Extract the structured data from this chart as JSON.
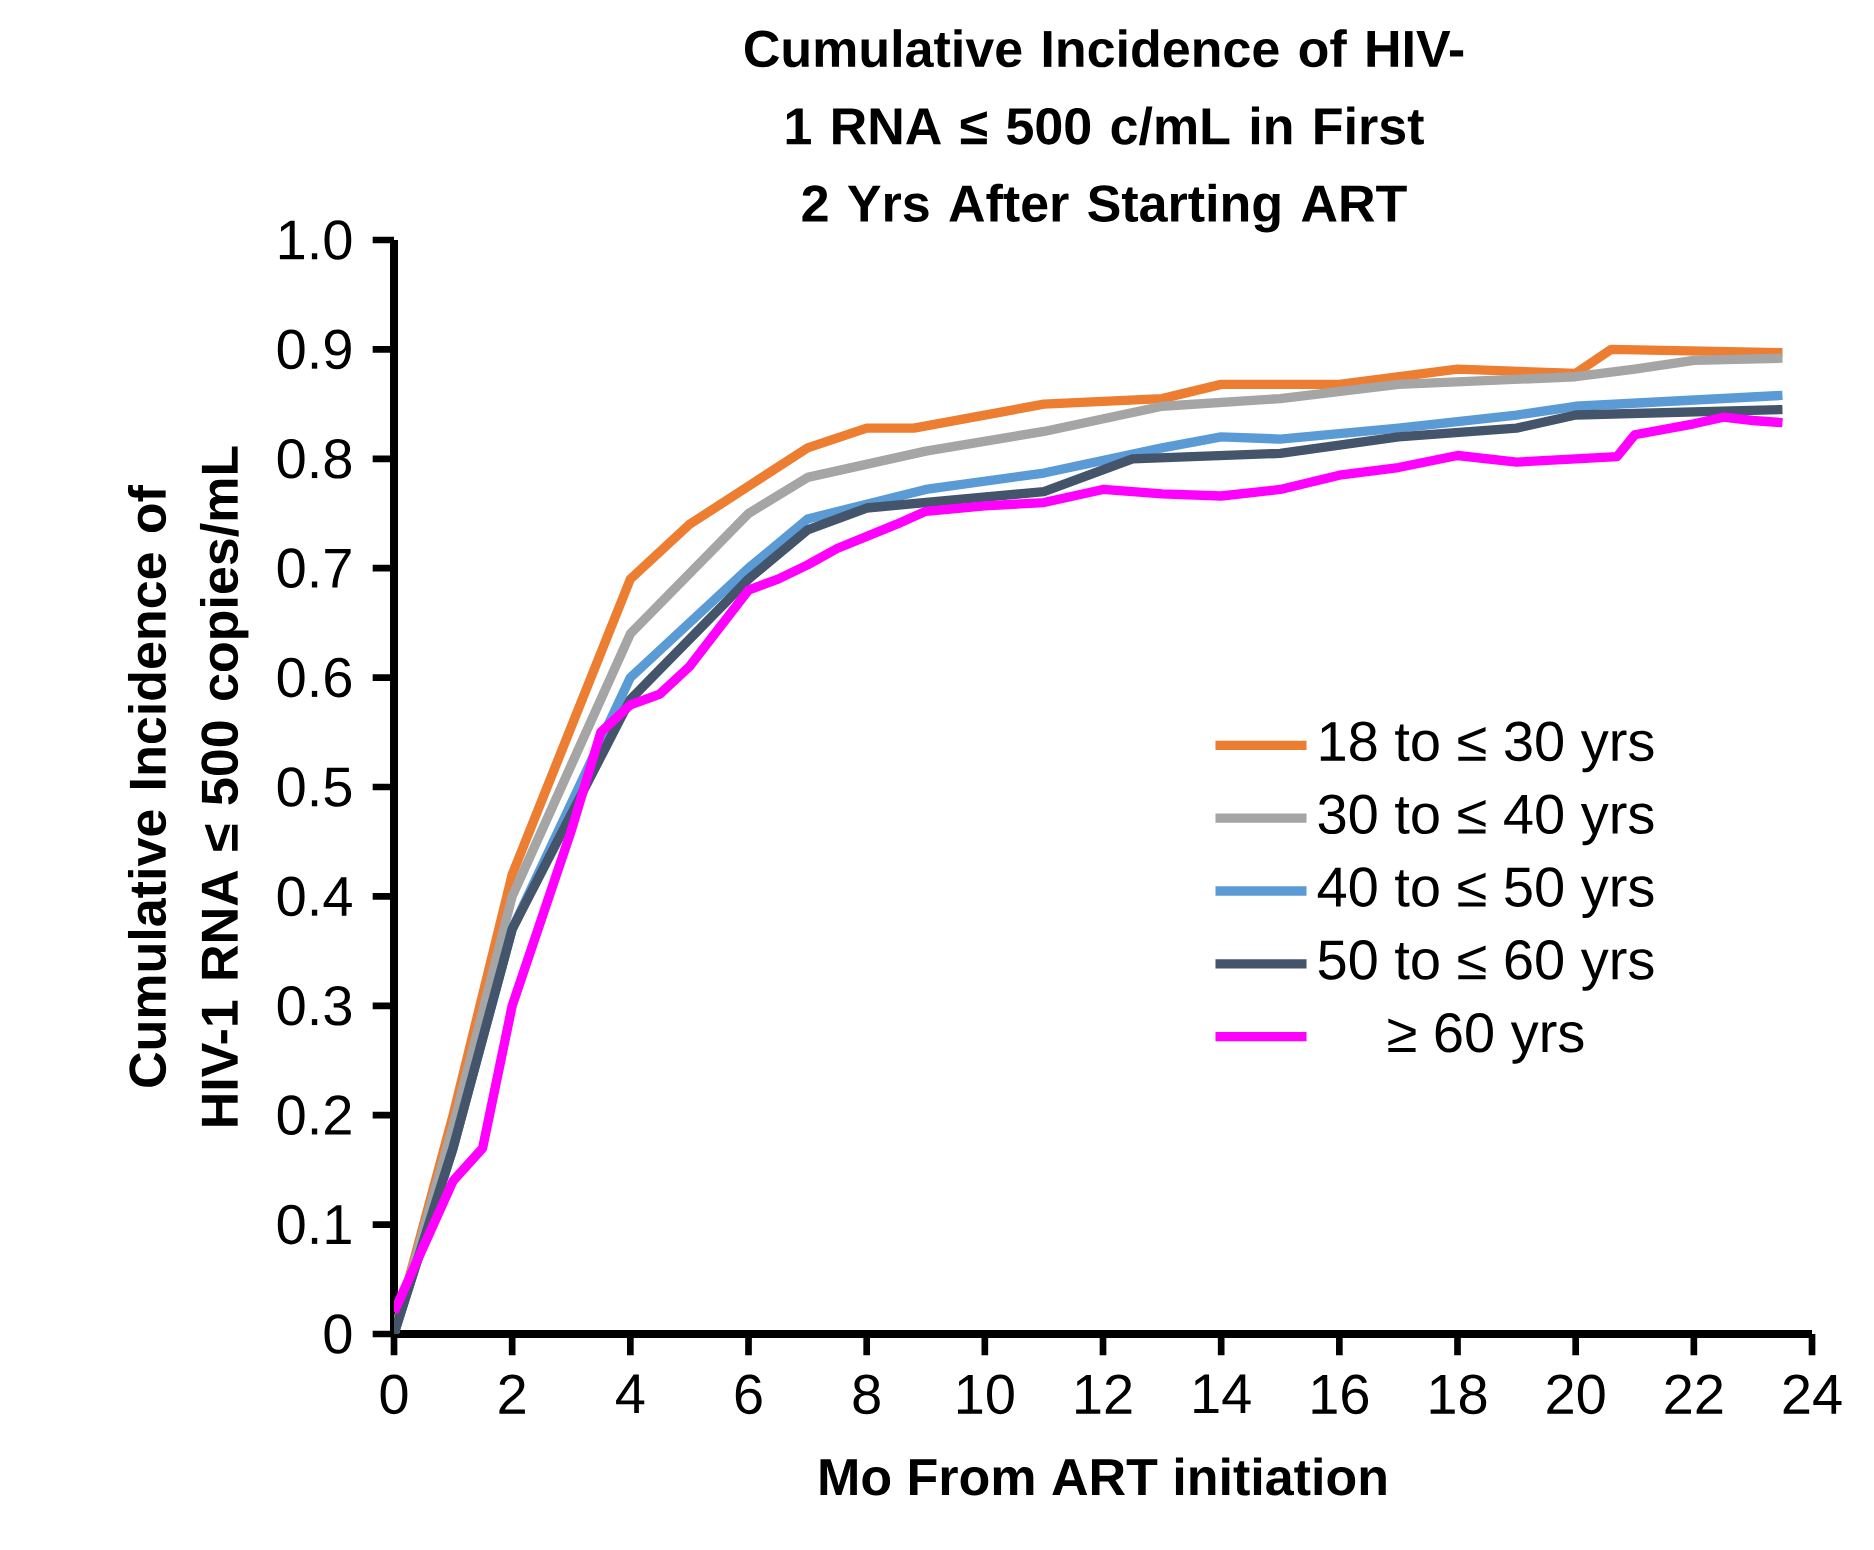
{
  "chart_data": {
    "type": "line",
    "title": "Cumulative Incidence of HIV-1 RNA ≤ 500 c/mL in First 2 Yrs After Starting ART",
    "xlabel": "Mo From ART initiation",
    "ylabel": "Cumulative Incidence of HIV-1 RNA ≤ 500 copies/mL",
    "xlim": [
      0,
      24
    ],
    "ylim": [
      0,
      1
    ],
    "xticks": [
      0,
      2,
      4,
      6,
      8,
      10,
      12,
      14,
      16,
      18,
      20,
      22,
      24
    ],
    "yticks": [
      0,
      0.1,
      0.2,
      0.3,
      0.4,
      0.5,
      0.6,
      0.7,
      0.8,
      0.9,
      {
        "value": 1,
        "label": "1.0"
      }
    ],
    "grid": false,
    "legend": "right",
    "marker": "none",
    "line_style": "solid",
    "series": [
      {
        "name": "18 to ≤ 30 yrs",
        "color": "#ed7d31",
        "x": [
          0,
          1,
          2,
          4,
          5,
          6,
          7,
          8,
          8.8,
          11,
          13,
          14,
          16,
          18,
          20,
          20.6,
          23.5
        ],
        "values": [
          0,
          0.2,
          0.42,
          0.69,
          0.74,
          0.775,
          0.81,
          0.828,
          0.828,
          0.85,
          0.855,
          0.868,
          0.868,
          0.882,
          0.878,
          0.9,
          0.897
        ]
      },
      {
        "name": "30 to ≤ 40 yrs",
        "color": "#a5a5a5",
        "x": [
          0,
          1,
          2,
          4,
          6,
          7,
          9,
          11,
          13,
          15,
          17,
          20,
          21,
          22,
          23.5
        ],
        "values": [
          0,
          0.19,
          0.4,
          0.64,
          0.75,
          0.783,
          0.807,
          0.825,
          0.848,
          0.855,
          0.868,
          0.875,
          0.882,
          0.89,
          0.892
        ]
      },
      {
        "name": "40 to ≤ 50 yrs",
        "color": "#5b9bd5",
        "x": [
          0,
          1,
          2,
          4,
          6,
          7,
          9,
          11,
          13,
          14,
          15,
          17,
          19,
          20,
          23.5
        ],
        "values": [
          0,
          0.17,
          0.37,
          0.6,
          0.7,
          0.745,
          0.772,
          0.787,
          0.81,
          0.82,
          0.818,
          0.828,
          0.84,
          0.848,
          0.858
        ]
      },
      {
        "name": "50 to ≤ 60 yrs",
        "color": "#44546a",
        "x": [
          0,
          1,
          2,
          4,
          6,
          7,
          8,
          11,
          12.5,
          15,
          17,
          19,
          20,
          23.5
        ],
        "values": [
          0,
          0.17,
          0.37,
          0.58,
          0.69,
          0.735,
          0.755,
          0.77,
          0.8,
          0.805,
          0.82,
          0.828,
          0.84,
          0.845
        ]
      },
      {
        "name": "≥ 60 yrs",
        "color": "#ff00ff",
        "x": [
          0,
          0.5,
          1,
          1.5,
          2,
          2.5,
          3,
          3.5,
          4,
          4.5,
          5,
          6,
          6.5,
          7,
          7.5,
          8.5,
          9,
          10,
          11,
          12,
          13,
          14,
          15,
          16,
          17,
          18,
          19,
          20,
          20.7,
          21,
          22,
          22.5,
          23,
          23.5
        ],
        "values": [
          0.02,
          0.08,
          0.14,
          0.17,
          0.3,
          0.38,
          0.46,
          0.55,
          0.575,
          0.585,
          0.61,
          0.68,
          0.69,
          0.703,
          0.718,
          0.74,
          0.752,
          0.757,
          0.76,
          0.772,
          0.768,
          0.766,
          0.772,
          0.785,
          0.792,
          0.803,
          0.797,
          0.8,
          0.802,
          0.822,
          0.832,
          0.838,
          0.835,
          0.833
        ]
      }
    ]
  }
}
